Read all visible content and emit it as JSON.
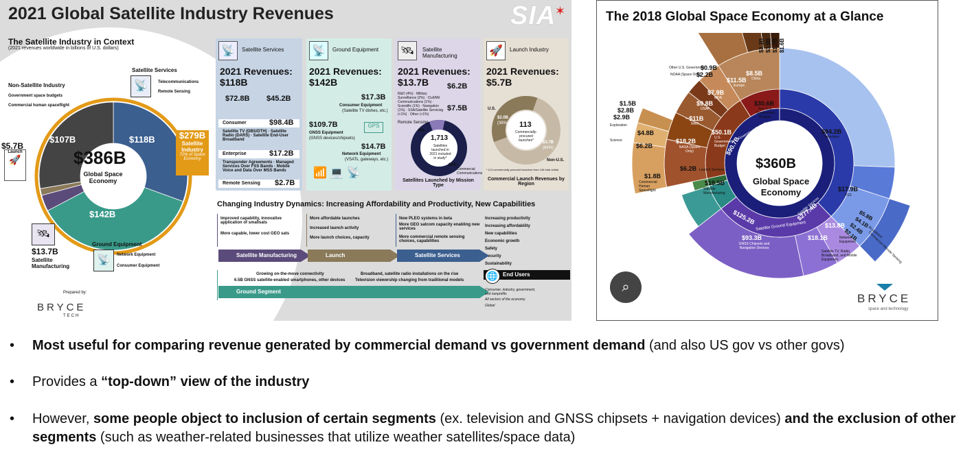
{
  "left": {
    "title": "2021 Global Satellite Industry Revenues",
    "logo": "SIA",
    "context_title": "The Satellite Industry in Context",
    "context_sub": "(2021 revenues worldwide in billions of U.S. dollars)",
    "non_sat": "Non-Satellite Industry",
    "non_sat_items": [
      "Government space budgets",
      "Commercial human spaceflight"
    ],
    "sat_services": "Satellite Services",
    "sat_services_items": [
      "Telecommunications",
      "Remote Sensing"
    ],
    "launch_val": "$5.7B",
    "launch": "Launch",
    "total": "$386B",
    "total_label": "Global Space Economy",
    "seg_107": "$107B",
    "seg_118": "$118B",
    "seg_142": "$142B",
    "sat_ind_val": "$279B",
    "sat_ind_label": "Satellite Industry",
    "sat_ind_note": "72% of Space Economy",
    "mfg_val": "$13.7B",
    "mfg_label": "Satellite Manufacturing",
    "ground": "Ground Equipment",
    "ground_items": [
      "Network Equipment",
      "Consumer Equipment"
    ],
    "prepared_by": "Prepared by:",
    "bryce": "BRYCE",
    "tech": "TECH",
    "panels": {
      "services": {
        "head": "Satellite Services",
        "rev": "2021 Revenues:",
        "rev_val": "$118B",
        "v1": "$72.8B",
        "v2": "$45.2B",
        "consumer": "Consumer",
        "consumer_val": "$98.4B",
        "consumer_items": "Satellite TV (DBS/DTH) · Satellite Radio (DARS) · Satellite End-User Broadband",
        "enterprise": "Enterprise",
        "enterprise_val": "$17.2B",
        "enterprise_items": "Transponder Agreements · Managed Services Over FSS Bands · Mobile Voice and Data Over MSS Bands",
        "remote": "Remote Sensing",
        "remote_val": "$2.7B"
      },
      "ground": {
        "head": "Ground Equipment",
        "rev": "2021 Revenues:",
        "rev_val": "$142B",
        "consumer_val": "$17.3B",
        "consumer_lbl": "Consumer Equipment",
        "consumer_note": "(Satellite TV dishes, etc.)",
        "gnss_val": "$109.7B",
        "gnss_lbl": "GNSS Equipment",
        "gnss_note": "(GNSS devices/chipsets)",
        "gps": "GPS",
        "net_val": "$14.7B",
        "net_lbl": "Network Equipment",
        "net_note": "(VSATs, gateways, etc.)"
      },
      "mfg": {
        "head": "Satellite Manufacturing",
        "rev": "2021 Revenues:",
        "rev_val": "$13.7B",
        "v1": "$6.2B",
        "v2": "$7.5B",
        "list": "R&D (4%) · Military Surveillance (2%) · Civil/Mil Communications (1%) · Scientific (1%) · Navigation (1%) · SSA/Satellite Servicing (<1%) · Other (<1%)",
        "remote_pct": "9%",
        "count": "1,713",
        "count_note": "Satellites launched in 2021 included in study*",
        "comm_pct": "82%",
        "comm_lbl": "Commercial Communications",
        "remote_lbl": "Remote Sensing",
        "caption": "Satellites Launched by Mission Type"
      },
      "launch": {
        "head": "Launch Industry",
        "rev": "2021 Revenues:",
        "rev_val": "$5.7B",
        "us": "U.S.",
        "us_val": "$2.0B",
        "us_pct": "(36%)",
        "center": "113",
        "center_note": "Commercially-procured launches*",
        "nonus_val": "$3.7B",
        "nonus_pct": "(64%)",
        "nonus": "Non-U.S.",
        "foot": "* 113 commercially procured launches from 146 total orbital",
        "caption": "Commercial Launch Revenues by Region"
      }
    },
    "dynamics_title": "Changing Industry Dynamics: Increasing Affordability and Productivity, New Capabilities",
    "dyn_mfg": [
      "Improved capability, innovative application of smallsats",
      "More capable, lower cost GEO sats"
    ],
    "dyn_launch": [
      "More affordable launches",
      "Increased launch activity",
      "More launch choices, capacity"
    ],
    "dyn_services": [
      "New PLEO systems in beta",
      "More GEO satcom capacity enabling new services",
      "More commercial remote sensing choices, capabilities"
    ],
    "dyn_outcomes": [
      "Increasing productivity",
      "Increasing affordability",
      "New capabilities",
      "Economic growth",
      "Safety",
      "Security",
      "Sustainability"
    ],
    "arrow_mfg": "Satellite Manufacturing",
    "arrow_launch": "Launch",
    "arrow_services": "Satellite Services",
    "arrow_ground": "Ground Segment",
    "end_users": "End Users",
    "end_users_items": [
      "Consumer, industry, government, and nonprofits",
      "All sectors of the economy",
      "Global"
    ],
    "ground_notes": [
      "Growing on-the-move connectivity",
      "6.5B GNSS satellite-enabled smartphones, other devices",
      "Broadband, satellite radio installations on the rise",
      "Television viewership changing from traditional models"
    ]
  },
  "right": {
    "title": "The 2018 Global Space Economy at a Glance",
    "center_val": "$360B",
    "center_l1": "Global Space",
    "center_l2": "Economy",
    "labels": {
      "television": "Television",
      "v942": "$94.2B",
      "fss": "FSS",
      "v179": "$17.9B",
      "v58": "$5.8B",
      "v41": "$4.1B",
      "v24": "$2.4B",
      "v21": "$2.1B",
      "broadband": "Broadband",
      "remote": "Commercial Remote Sensing",
      "v138": "$13.8B",
      "network": "Network Equipment",
      "v181": "$18.1B",
      "radio": "Satellite TV, Radio, Broadband, and Mobile Equipment",
      "v933": "$93.3B",
      "gnss": "GNSS Chipsets and Navigation Devices",
      "v1252": "$125.2B",
      "ground": "Satellite Ground Equipment",
      "v277": "$277.4B",
      "services": "Satellite Services",
      "v195": "$19.5B",
      "mfg": "Satellite Manufacturing",
      "v62": "$6.2B",
      "launch": "Launch Services",
      "v18": "$1.8B",
      "human": "Commercial Human Spaceflight",
      "v15": "$1.5B",
      "v28": "$2.8B",
      "v29": "$2.9B",
      "exploration": "Exploration",
      "science": "Science",
      "v48": "$4.8B",
      "v62b": "$6.2B",
      "v182": "$18.2B",
      "nasa": "NASA (Space Only)",
      "v11": "~$11B",
      "nro": "NRO",
      "v98": "$9.8B",
      "usaf": "USAF",
      "v79": "$7.9B",
      "mda": "MDA",
      "v09": "$0.9B",
      "other_us": "Other U.S. Government",
      "v22": "$2.2B",
      "noaa": "NOAA (Space Only)",
      "v115": "$11.5B",
      "europe": "Europe",
      "v85": "$8.5B",
      "china": "China",
      "v33": "$3.3B",
      "v39": "$3.9B",
      "v17": "$1.7B",
      "v16": "$1.6B",
      "v306": "$30.6B",
      "nonus_gov": "Non-U.S. Government Budgets",
      "v501": "$50.1B",
      "us_gov": "U.S. Government Budget",
      "v907": "$90.7B",
      "gov_budgets": "Government Budgets",
      "v825": "$82.5B",
      "nonsat": "Non-Satellite Industry"
    },
    "bryce": "BRYCE",
    "tagline": "space and technology"
  },
  "bullets": {
    "b1_bold": "Most useful for comparing revenue generated by commercial demand vs government demand",
    "b1_rest": " (and also US gov vs other govs)",
    "b2_pre": "Provides a ",
    "b2_bold": "“top-down” view of the industry",
    "b3_pre": "However, ",
    "b3_bold1": "some people object to inclusion of certain segments",
    "b3_mid": " (ex. television and GNSS chipsets + navigation devices) ",
    "b3_bold2": "and the exclusion of other segments",
    "b3_rest": " (such as weather-related businesses that utilize weather satellites/space data)"
  },
  "colors": {
    "services": "#3b5f8f",
    "ground": "#3a9a8a",
    "mfg": "#5b4b7a",
    "launch": "#8a7a5a",
    "nonsat": "#444444",
    "orange": "#e39a17",
    "r_services": "#a8c2ef",
    "r_ground": "#7c5fc4",
    "r_mfg": "#3c9a96",
    "r_gov": "#8a4a2a",
    "r_navy": "#1b1f7a"
  }
}
